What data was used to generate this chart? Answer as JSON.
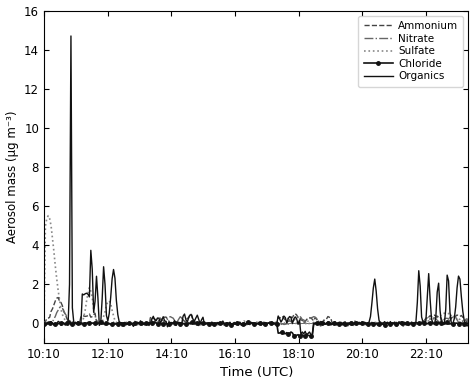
{
  "title": "",
  "xlabel": "Time (UTC)",
  "ylabel": "Aerosol mass (µg m⁻³)",
  "xlim_hours": [
    10.1667,
    23.5
  ],
  "ylim": [
    -1,
    16
  ],
  "yticks": [
    0,
    2,
    4,
    6,
    8,
    10,
    12,
    14,
    16
  ],
  "xtick_labels": [
    "10:10",
    "12:10",
    "14:10",
    "16:10",
    "18:10",
    "20:10",
    "22:10"
  ],
  "xtick_positions": [
    10.1667,
    12.1667,
    14.1667,
    16.1667,
    18.1667,
    20.1667,
    22.1667
  ],
  "background_color": "#ffffff",
  "series": {
    "Ammonium": {
      "linestyle": "--",
      "color": "#444444",
      "linewidth": 1.0,
      "marker": null,
      "zorder": 3
    },
    "Nitrate": {
      "linestyle": "-.",
      "color": "#666666",
      "linewidth": 1.0,
      "marker": null,
      "zorder": 3
    },
    "Sulfate": {
      "linestyle": ":",
      "color": "#888888",
      "linewidth": 1.2,
      "marker": null,
      "zorder": 2
    },
    "Chloride": {
      "linestyle": "-",
      "color": "#111111",
      "linewidth": 1.2,
      "marker": "o",
      "markersize": 2.5,
      "zorder": 4
    },
    "Organics": {
      "linestyle": "-",
      "color": "#111111",
      "linewidth": 1.0,
      "marker": null,
      "zorder": 5
    }
  }
}
